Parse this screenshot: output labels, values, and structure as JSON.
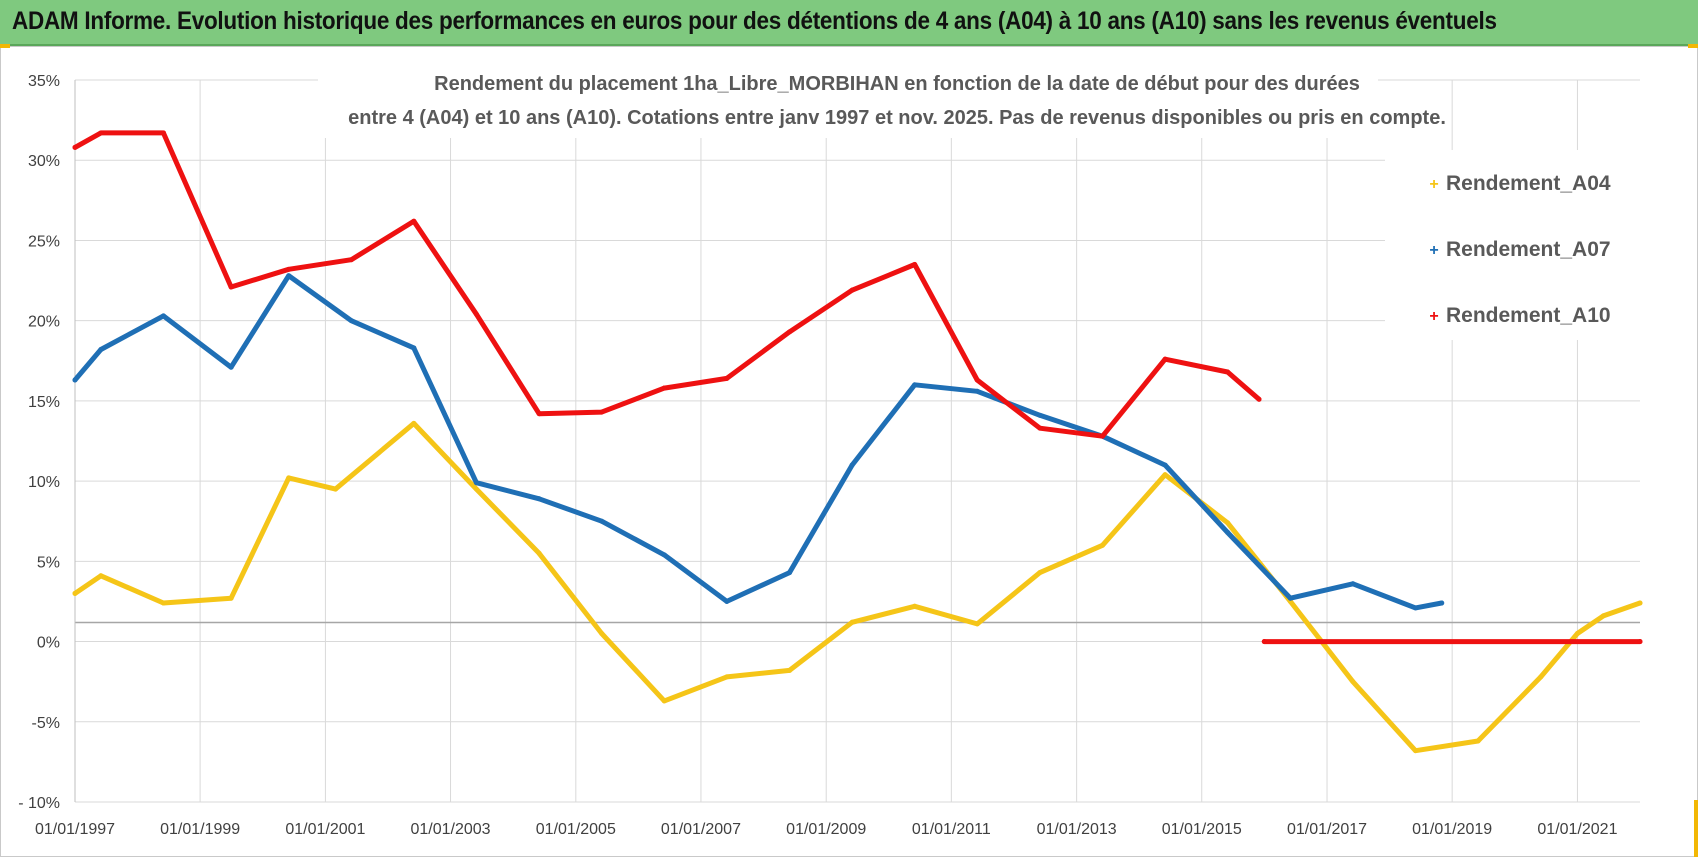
{
  "banner": {
    "title": "ADAM Informe. Evolution historique des performances en euros pour des détentions de 4 ans (A04) à 10 ans (A10) sans les revenus éventuels"
  },
  "colors": {
    "banner_bg": "#7fc97f",
    "A04": "#f5c518",
    "A07": "#1f6fb5",
    "A10": "#ee1111"
  },
  "chart_data": {
    "type": "line",
    "title_line1": "Rendement du placement 1ha_Libre_MORBIHAN en fonction de la date de début pour des durées",
    "title_line2": "entre 4 (A04) et 10 ans (A10). Cotations entre janv 1997 et nov. 2025. Pas de revenus disponibles ou pris en compte.",
    "xlim": [
      "1997-01-01",
      "2022-01-01"
    ],
    "ylim": [
      -10,
      35
    ],
    "y_ticks": [
      -10,
      -5,
      0,
      5,
      10,
      15,
      20,
      25,
      30,
      35
    ],
    "y_tick_labels": [
      "- 10%",
      "-5%",
      "0%",
      "5%",
      "10%",
      "15%",
      "20%",
      "25%",
      "30%",
      "35%"
    ],
    "x_ticks": [
      "1997-01-01",
      "1999-01-01",
      "2001-01-01",
      "2003-01-01",
      "2005-01-01",
      "2007-01-01",
      "2009-01-01",
      "2011-01-01",
      "2013-01-01",
      "2015-01-01",
      "2017-01-01",
      "2019-01-01",
      "2021-01-01"
    ],
    "x_tick_labels": [
      "01/01/1997",
      "01/01/1999",
      "01/01/2001",
      "01/01/2003",
      "01/01/2005",
      "01/01/2007",
      "01/01/2009",
      "01/01/2011",
      "01/01/2013",
      "01/01/2015",
      "01/01/2017",
      "01/01/2019",
      "01/01/2021"
    ],
    "grid": true,
    "legend_position": "top-right",
    "series": [
      {
        "name": "Rendement_A04",
        "color": "#f5c518",
        "points": [
          [
            "1997-01-01",
            3.0
          ],
          [
            "1997-06-01",
            4.1
          ],
          [
            "1998-06-01",
            2.4
          ],
          [
            "1999-07-01",
            2.7
          ],
          [
            "2000-06-01",
            10.2
          ],
          [
            "2001-03-01",
            9.5
          ],
          [
            "2002-06-01",
            13.6
          ],
          [
            "2003-06-01",
            9.5
          ],
          [
            "2004-06-01",
            5.5
          ],
          [
            "2005-06-01",
            0.5
          ],
          [
            "2006-06-01",
            -3.7
          ],
          [
            "2007-06-01",
            -2.2
          ],
          [
            "2008-06-01",
            -1.8
          ],
          [
            "2009-06-01",
            1.2
          ],
          [
            "2010-06-01",
            2.2
          ],
          [
            "2011-06-01",
            1.1
          ],
          [
            "2012-06-01",
            4.3
          ],
          [
            "2013-06-01",
            6.0
          ],
          [
            "2014-06-01",
            10.4
          ],
          [
            "2015-06-01",
            7.4
          ],
          [
            "2016-06-01",
            2.5
          ],
          [
            "2017-06-01",
            -2.5
          ],
          [
            "2018-06-01",
            -6.8
          ],
          [
            "2019-06-01",
            -6.2
          ],
          [
            "2020-06-01",
            -2.2
          ],
          [
            "2021-01-01",
            0.5
          ],
          [
            "2021-06-01",
            1.6
          ],
          [
            "2022-01-01",
            2.4
          ]
        ]
      },
      {
        "name": "Rendement_A07",
        "color": "#1f6fb5",
        "points": [
          [
            "1997-01-01",
            16.3
          ],
          [
            "1997-06-01",
            18.2
          ],
          [
            "1998-06-01",
            20.3
          ],
          [
            "1999-07-01",
            17.1
          ],
          [
            "2000-06-01",
            22.8
          ],
          [
            "2001-06-01",
            20.0
          ],
          [
            "2002-06-01",
            18.3
          ],
          [
            "2003-06-01",
            9.9
          ],
          [
            "2004-06-01",
            8.9
          ],
          [
            "2005-06-01",
            7.5
          ],
          [
            "2006-06-01",
            5.4
          ],
          [
            "2007-06-01",
            2.5
          ],
          [
            "2008-06-01",
            4.3
          ],
          [
            "2009-06-01",
            11.0
          ],
          [
            "2010-06-01",
            16.0
          ],
          [
            "2011-06-01",
            15.6
          ],
          [
            "2012-06-01",
            14.1
          ],
          [
            "2013-06-01",
            12.8
          ],
          [
            "2014-06-01",
            11.0
          ],
          [
            "2015-06-01",
            6.8
          ],
          [
            "2016-06-01",
            2.7
          ],
          [
            "2017-06-01",
            3.6
          ],
          [
            "2018-06-01",
            2.1
          ],
          [
            "2018-11-01",
            2.4
          ]
        ]
      },
      {
        "name": "Rendement_A10",
        "color": "#ee1111",
        "points": [
          [
            "1997-01-01",
            30.8
          ],
          [
            "1997-06-01",
            31.7
          ],
          [
            "1998-06-01",
            31.7
          ],
          [
            "1999-07-01",
            22.1
          ],
          [
            "2000-06-01",
            23.2
          ],
          [
            "2001-06-01",
            23.8
          ],
          [
            "2002-06-01",
            26.2
          ],
          [
            "2003-06-01",
            20.4
          ],
          [
            "2004-06-01",
            14.2
          ],
          [
            "2005-06-01",
            14.3
          ],
          [
            "2006-06-01",
            15.8
          ],
          [
            "2007-06-01",
            16.4
          ],
          [
            "2008-06-01",
            19.3
          ],
          [
            "2009-06-01",
            21.9
          ],
          [
            "2010-06-01",
            23.5
          ],
          [
            "2011-06-01",
            16.3
          ],
          [
            "2012-06-01",
            13.3
          ],
          [
            "2013-06-01",
            12.8
          ],
          [
            "2014-06-01",
            17.6
          ],
          [
            "2015-06-01",
            16.8
          ],
          [
            "2015-12-01",
            15.1
          ]
        ]
      },
      {
        "name": "Rendement_A10",
        "color": "#ee1111",
        "show_in_legend": false,
        "points": [
          [
            "2016-01-01",
            0.0
          ],
          [
            "2022-01-01",
            0.0
          ]
        ]
      }
    ]
  }
}
